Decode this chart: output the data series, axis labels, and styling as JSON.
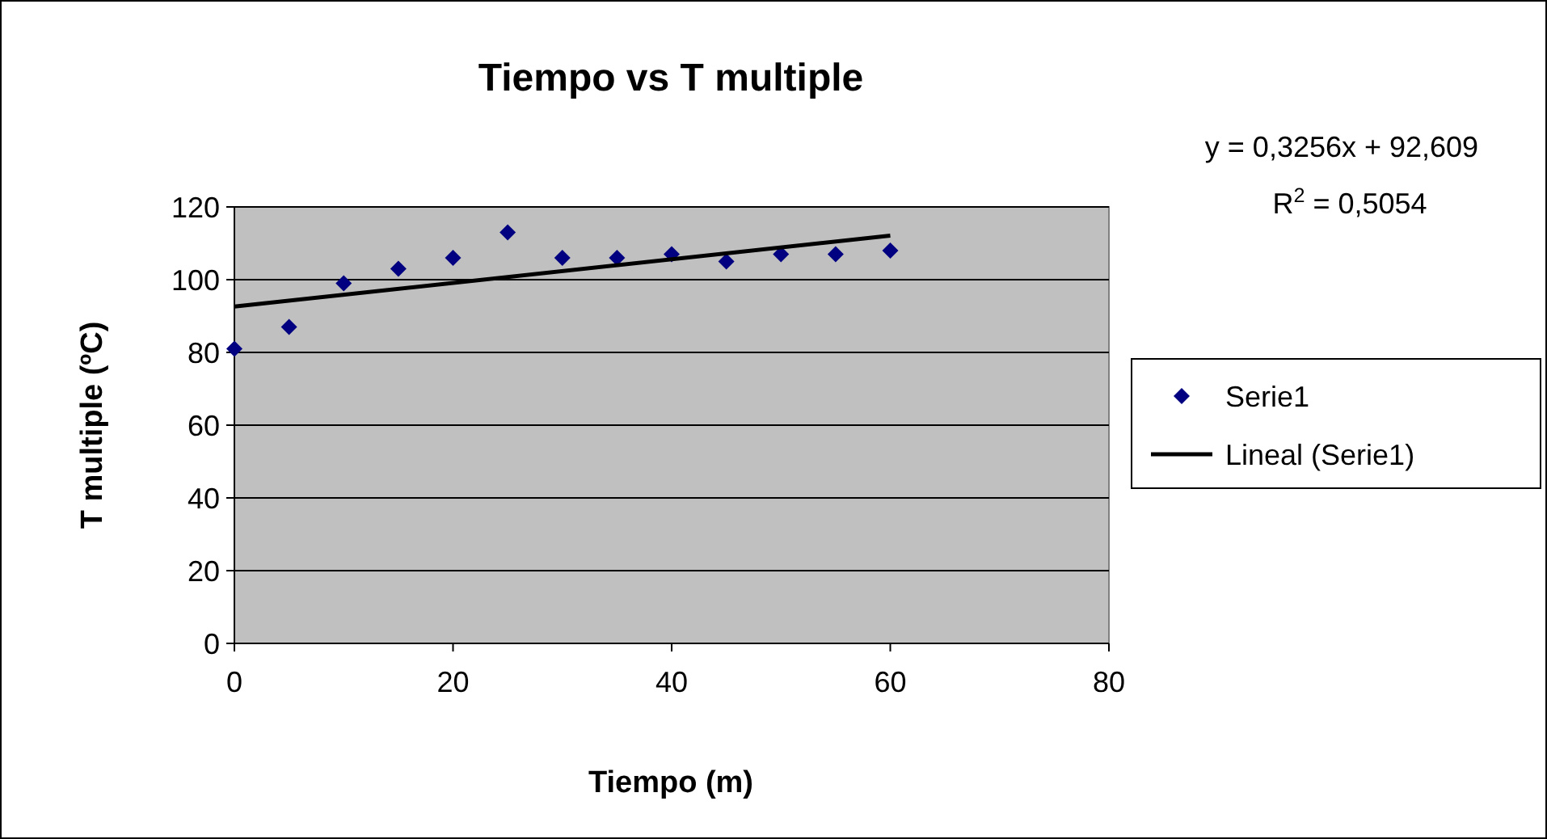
{
  "chart_data": {
    "type": "scatter",
    "title": "Tiempo vs T multiple",
    "xlabel": "Tiempo (m)",
    "ylabel": "T multiple (ºC)",
    "series": [
      {
        "name": "Serie1",
        "color": "#000080",
        "marker": "diamond",
        "x": [
          0,
          5,
          10,
          15,
          20,
          25,
          30,
          35,
          40,
          45,
          50,
          55,
          60
        ],
        "values": [
          81,
          87,
          99,
          103,
          106,
          113,
          106,
          106,
          107,
          105,
          107,
          107,
          108
        ]
      },
      {
        "name": "Lineal (Serie1)",
        "type": "line",
        "color": "#000000",
        "marker": "none",
        "line_style": "solid",
        "x": [
          0,
          60
        ],
        "values": [
          92.6,
          112.1
        ]
      }
    ],
    "xlim": [
      0,
      80
    ],
    "xticks": [
      0,
      20,
      40,
      60,
      80
    ],
    "ylim": [
      0,
      120
    ],
    "yticks": [
      0,
      20,
      40,
      60,
      80,
      100,
      120
    ],
    "grid": "y",
    "legend": "right",
    "annotations": [
      "y = 0,3256x + 92,609",
      "R$^{2}$ = 0,5054"
    ]
  }
}
